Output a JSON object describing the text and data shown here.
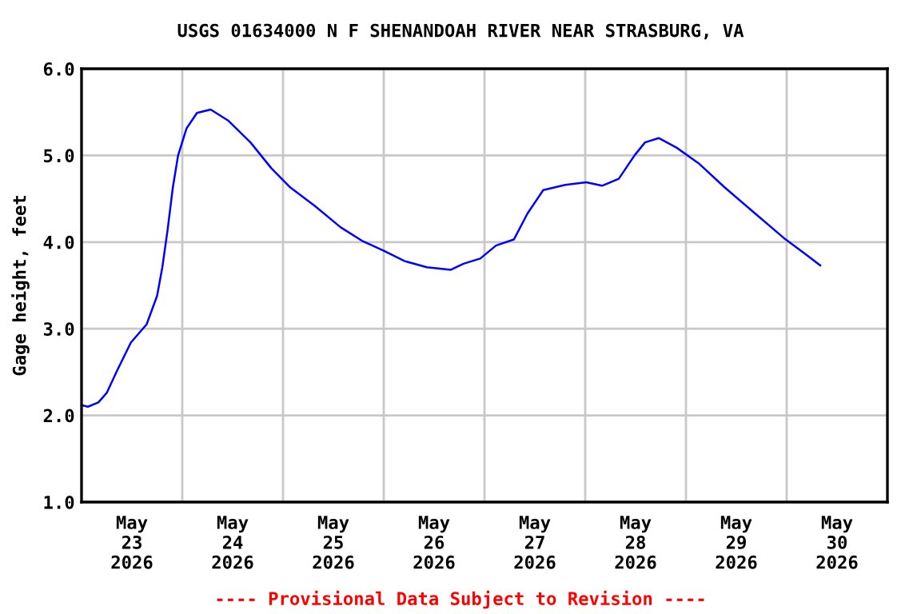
{
  "chart_data": {
    "type": "line",
    "title": "USGS 01634000 N F SHENANDOAH RIVER NEAR STRASBURG, VA",
    "ylabel": "Gage height, feet",
    "annotations": [
      "---- Provisional Data Subject to Revision ----"
    ],
    "series": [
      {
        "color": "#0000ff",
        "x": [
          "2026-05-23T00:00",
          "2026-05-23T01:30",
          "2026-05-23T04:00",
          "2026-05-23T06:00",
          "2026-05-23T08:30",
          "2026-05-23T11:45",
          "2026-05-23T15:30",
          "2026-05-23T18:00",
          "2026-05-23T19:15",
          "2026-05-23T20:30",
          "2026-05-23T21:45",
          "2026-05-23T23:00",
          "2026-05-24T01:00",
          "2026-05-24T03:30",
          "2026-05-24T06:45",
          "2026-05-24T11:00",
          "2026-05-24T16:15",
          "2026-05-24T21:15",
          "2026-05-25T01:45",
          "2026-05-25T07:30",
          "2026-05-25T13:45",
          "2026-05-25T19:00",
          "2026-05-26T00:00",
          "2026-05-26T05:00",
          "2026-05-26T10:15",
          "2026-05-26T16:00",
          "2026-05-26T19:00",
          "2026-05-26T23:00",
          "2026-05-27T02:45",
          "2026-05-27T07:00",
          "2026-05-27T10:15",
          "2026-05-27T14:00",
          "2026-05-27T19:15",
          "2026-05-28T00:15",
          "2026-05-28T04:00",
          "2026-05-28T08:00",
          "2026-05-28T11:45",
          "2026-05-28T14:15",
          "2026-05-28T17:30",
          "2026-05-28T21:45",
          "2026-05-29T03:00",
          "2026-05-29T09:15",
          "2026-05-29T15:45",
          "2026-05-29T23:15",
          "2026-05-30T04:15",
          "2026-05-30T08:00"
        ],
        "values": [
          2.12,
          2.1,
          2.15,
          2.26,
          2.52,
          2.84,
          3.05,
          3.38,
          3.71,
          4.14,
          4.63,
          5.0,
          5.31,
          5.49,
          5.53,
          5.4,
          5.15,
          4.85,
          4.63,
          4.42,
          4.17,
          4.01,
          3.9,
          3.78,
          3.71,
          3.68,
          3.75,
          3.81,
          3.96,
          4.03,
          4.33,
          4.6,
          4.66,
          4.69,
          4.65,
          4.73,
          5.0,
          5.15,
          5.2,
          5.09,
          4.91,
          4.63,
          4.36,
          4.05,
          3.87,
          3.73
        ]
      }
    ],
    "xlim": [
      "2026-05-23T00:00",
      "2026-05-31T00:00"
    ],
    "xticks": [
      {
        "value": "2026-05-24T00:00",
        "label": null
      },
      {
        "value": "2026-05-25T00:00",
        "label": null
      },
      {
        "value": "2026-05-26T00:00",
        "label": null
      },
      {
        "value": "2026-05-27T00:00",
        "label": null
      },
      {
        "value": "2026-05-28T00:00",
        "label": null
      },
      {
        "value": "2026-05-29T00:00",
        "label": null
      },
      {
        "value": "2026-05-30T00:00",
        "label": null
      },
      {
        "value": "2026-05-23T12:00",
        "label": "May\n23\n2026"
      },
      {
        "value": "2026-05-24T12:00",
        "label": "May\n24\n2026"
      },
      {
        "value": "2026-05-25T12:00",
        "label": "May\n25\n2026"
      },
      {
        "value": "2026-05-26T12:00",
        "label": "May\n26\n2026"
      },
      {
        "value": "2026-05-27T12:00",
        "label": "May\n27\n2026"
      },
      {
        "value": "2026-05-28T12:00",
        "label": "May\n28\n2026"
      },
      {
        "value": "2026-05-29T12:00",
        "label": "May\n29\n2026"
      },
      {
        "value": "2026-05-30T12:00",
        "label": "May\n30\n2026"
      }
    ],
    "ylim": [
      1.0,
      6.0
    ],
    "yticks": [
      {
        "value": 1.0,
        "label": "1.0"
      },
      {
        "value": 2.0,
        "label": "2.0"
      },
      {
        "value": 3.0,
        "label": "3.0"
      },
      {
        "value": 4.0,
        "label": "4.0"
      },
      {
        "value": 5.0,
        "label": "5.0"
      },
      {
        "value": 6.0,
        "label": "6.0"
      }
    ],
    "grid": true,
    "marker": "none",
    "line_style": "solid",
    "legend": false
  }
}
